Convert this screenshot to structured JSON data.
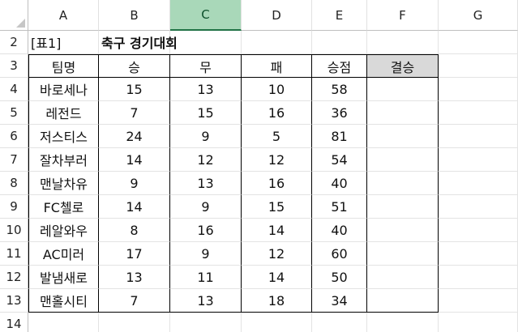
{
  "columns": [
    "A",
    "B",
    "C",
    "D",
    "E",
    "F",
    "G"
  ],
  "selected_column": "C",
  "rows": [
    "2",
    "3",
    "4",
    "5",
    "6",
    "7",
    "8",
    "9",
    "10",
    "11",
    "12",
    "13",
    "14"
  ],
  "sheet": {
    "table_ref": "[표1]",
    "title": "축구 경기대회",
    "headers": [
      "팀명",
      "승",
      "무",
      "패",
      "승점",
      "결승"
    ],
    "data": [
      [
        "바로세나",
        "15",
        "13",
        "10",
        "58",
        ""
      ],
      [
        "레전드",
        "7",
        "15",
        "16",
        "36",
        ""
      ],
      [
        "저스티스",
        "24",
        "9",
        "5",
        "81",
        ""
      ],
      [
        "잘차부러",
        "14",
        "12",
        "12",
        "54",
        ""
      ],
      [
        "맨날차유",
        "9",
        "13",
        "16",
        "40",
        ""
      ],
      [
        "FC첼로",
        "14",
        "9",
        "15",
        "51",
        ""
      ],
      [
        "레알와우",
        "8",
        "16",
        "14",
        "40",
        ""
      ],
      [
        "AC미러",
        "17",
        "9",
        "12",
        "60",
        ""
      ],
      [
        "발냄새로",
        "13",
        "11",
        "14",
        "50",
        ""
      ],
      [
        "맨홀시티",
        "7",
        "13",
        "18",
        "34",
        ""
      ]
    ]
  }
}
